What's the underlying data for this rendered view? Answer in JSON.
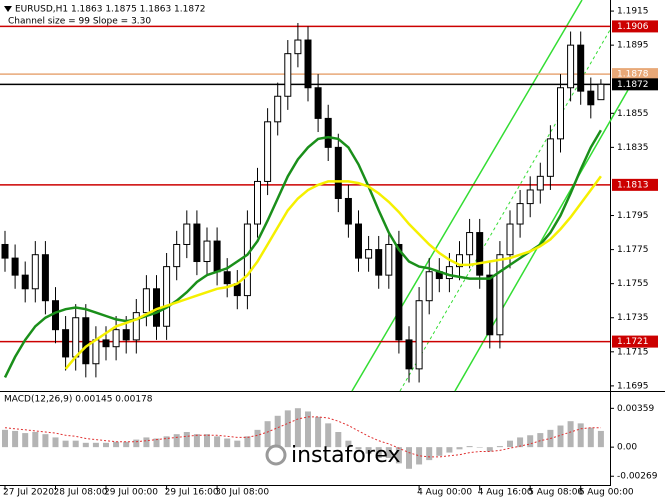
{
  "chart_data": [
    {
      "type": "candlestick",
      "title": "EURUSD,H1 1.1863 1.1875 1.1863 1.1872",
      "subtitle": "Channel size = 99 Slope = 3.30",
      "categories": [
        "27 Jul 2020",
        null,
        null,
        null,
        null,
        "28 Jul 08:00",
        null,
        null,
        null,
        null,
        "29 Jul 00:00",
        null,
        null,
        null,
        null,
        null,
        "29 Jul 16:00",
        null,
        null,
        null,
        null,
        "30 Jul 08:00",
        null,
        null,
        null,
        null,
        null,
        null,
        null,
        null,
        null,
        null,
        null,
        null,
        null,
        null,
        null,
        null,
        null,
        null,
        null,
        "4 Aug 00:00",
        null,
        null,
        null,
        null,
        null,
        "4 Aug 16:00",
        null,
        null,
        null,
        null,
        "5 Aug 08:00",
        null,
        null,
        null,
        null,
        "6 Aug 00:00",
        null,
        null
      ],
      "open": [
        1.1778,
        1.177,
        1.176,
        1.1752,
        1.1772,
        1.1745,
        1.1728,
        1.1712,
        1.1735,
        1.1708,
        1.1722,
        1.1718,
        1.1728,
        1.1722,
        1.1738,
        1.1752,
        1.173,
        1.1765,
        1.1778,
        1.179,
        1.1768,
        1.178,
        1.1762,
        1.1755,
        1.1748,
        1.179,
        1.1815,
        1.185,
        1.1865,
        1.189,
        1.1898,
        1.187,
        1.1852,
        1.1835,
        1.1805,
        1.179,
        1.177,
        1.1775,
        1.176,
        1.1778,
        1.1722,
        1.1705,
        1.1745,
        1.1762,
        1.1758,
        1.1765,
        1.1772,
        1.1785,
        1.176,
        1.1725,
        1.1772,
        1.179,
        1.1802,
        1.181,
        1.1818,
        1.184,
        1.187,
        1.1895,
        1.1868,
        1.1863
      ],
      "high": [
        1.1786,
        1.1778,
        1.1768,
        1.178,
        1.178,
        1.1753,
        1.1736,
        1.1743,
        1.1743,
        1.173,
        1.173,
        1.1736,
        1.1736,
        1.1746,
        1.176,
        1.176,
        1.1773,
        1.1786,
        1.1798,
        1.1798,
        1.1788,
        1.1788,
        1.177,
        1.1763,
        1.1798,
        1.1823,
        1.1858,
        1.1873,
        1.1898,
        1.1908,
        1.1906,
        1.1878,
        1.186,
        1.1843,
        1.1813,
        1.1798,
        1.1783,
        1.1783,
        1.1786,
        1.1786,
        1.173,
        1.1753,
        1.177,
        1.177,
        1.1773,
        1.178,
        1.1793,
        1.1793,
        1.1768,
        1.178,
        1.1798,
        1.181,
        1.1818,
        1.1826,
        1.1848,
        1.1878,
        1.1903,
        1.1903,
        1.1876,
        1.1875
      ],
      "low": [
        1.1762,
        1.1752,
        1.1744,
        1.1744,
        1.1737,
        1.172,
        1.1704,
        1.1704,
        1.17,
        1.17,
        1.171,
        1.171,
        1.1714,
        1.1714,
        1.173,
        1.1722,
        1.1722,
        1.1757,
        1.177,
        1.176,
        1.176,
        1.1754,
        1.1747,
        1.174,
        1.174,
        1.1782,
        1.1807,
        1.1842,
        1.1857,
        1.1882,
        1.1862,
        1.1844,
        1.1827,
        1.1797,
        1.1782,
        1.1762,
        1.1762,
        1.1752,
        1.1752,
        1.1714,
        1.1697,
        1.1697,
        1.1737,
        1.175,
        1.175,
        1.1757,
        1.1764,
        1.1752,
        1.1717,
        1.1717,
        1.1764,
        1.1782,
        1.1794,
        1.1802,
        1.181,
        1.1832,
        1.1862,
        1.186,
        1.1852,
        1.1863
      ],
      "close": [
        1.177,
        1.176,
        1.1752,
        1.1772,
        1.1745,
        1.1728,
        1.1712,
        1.1735,
        1.1708,
        1.1722,
        1.1718,
        1.1728,
        1.1722,
        1.1738,
        1.1752,
        1.173,
        1.1765,
        1.1778,
        1.179,
        1.1768,
        1.178,
        1.1762,
        1.1755,
        1.1748,
        1.179,
        1.1815,
        1.185,
        1.1865,
        1.189,
        1.1898,
        1.187,
        1.1852,
        1.1835,
        1.1805,
        1.179,
        1.177,
        1.1775,
        1.176,
        1.1778,
        1.1722,
        1.1705,
        1.1745,
        1.1762,
        1.1758,
        1.1765,
        1.1772,
        1.1785,
        1.176,
        1.1725,
        1.1772,
        1.179,
        1.1802,
        1.181,
        1.1818,
        1.184,
        1.187,
        1.1895,
        1.1868,
        1.186,
        1.1872
      ],
      "lines": [
        {
          "color": "#1a8f1a",
          "values": [
            1.17,
            1.1712,
            1.1722,
            1.173,
            1.1735,
            1.1738,
            1.174,
            1.1741,
            1.174,
            1.1738,
            1.1736,
            1.1734,
            1.1733,
            1.1734,
            1.1736,
            1.1738,
            1.1741,
            1.1745,
            1.175,
            1.1756,
            1.176,
            1.1762,
            1.1764,
            1.1768,
            1.1772,
            1.178,
            1.1792,
            1.1805,
            1.1818,
            1.1828,
            1.1835,
            1.184,
            1.1841,
            1.184,
            1.1835,
            1.1825,
            1.1812,
            1.1798,
            1.1785,
            1.1775,
            1.1768,
            1.1765,
            1.1764,
            1.1762,
            1.176,
            1.1759,
            1.1758,
            1.1758,
            1.1758,
            1.1762,
            1.1766,
            1.177,
            1.1774,
            1.1778,
            1.1785,
            1.1795,
            1.1808,
            1.1822,
            1.1835,
            1.1845
          ]
        },
        {
          "color": "#f5f000",
          "values": [
            null,
            null,
            null,
            null,
            null,
            null,
            1.1705,
            1.1712,
            1.1718,
            1.1722,
            1.1726,
            1.173,
            1.1732,
            1.1734,
            1.1737,
            1.174,
            1.1742,
            1.1744,
            1.1746,
            1.1748,
            1.175,
            1.1752,
            1.1753,
            1.1755,
            1.176,
            1.1768,
            1.1778,
            1.1788,
            1.1798,
            1.1805,
            1.181,
            1.1813,
            1.1815,
            1.1815,
            1.1815,
            1.1814,
            1.1812,
            1.1808,
            1.1803,
            1.1797,
            1.179,
            1.1784,
            1.1778,
            1.1773,
            1.1769,
            1.1766,
            1.1766,
            1.1767,
            1.1768,
            1.1769,
            1.177,
            1.1772,
            1.1774,
            1.1777,
            1.1781,
            1.1787,
            1.1794,
            1.1802,
            1.181,
            1.1818
          ]
        }
      ],
      "levels": [
        {
          "value": 1.1906,
          "color": "#cc0000"
        },
        {
          "value": 1.1878,
          "color": "#e8a878"
        },
        {
          "value": 1.1872,
          "color": "#000000"
        },
        {
          "value": 1.1813,
          "color": "#cc0000"
        },
        {
          "value": 1.1721,
          "color": "#cc0000"
        }
      ],
      "ylim": [
        1.1692,
        1.19215
      ],
      "yticks": [
        1.1915,
        1.1895,
        1.1855,
        1.1835,
        1.1795,
        1.1775,
        1.1755,
        1.1735,
        1.1715,
        1.1695
      ]
    },
    {
      "type": "macd",
      "title": "MACD(12,26,9) 0.00145 0.00178",
      "color": "#b4b4b4",
      "signal_color": "#e03030",
      "histogram": [
        0.0016,
        0.0015,
        0.0013,
        0.0014,
        0.0012,
        0.0009,
        0.0006,
        0.0006,
        0.0004,
        0.0004,
        0.0004,
        0.0005,
        0.0005,
        0.0007,
        0.0009,
        0.0008,
        0.001,
        0.0012,
        0.0014,
        0.0012,
        0.0012,
        0.001,
        0.0008,
        0.0006,
        0.001,
        0.0016,
        0.0024,
        0.0029,
        0.0034,
        0.0036,
        0.0033,
        0.0028,
        0.0022,
        0.0014,
        0.0006,
        -0.0002,
        -0.0006,
        -0.001,
        -0.001,
        -0.0015,
        -0.002,
        -0.0016,
        -0.0012,
        -0.0008,
        -0.0005,
        -0.0002,
        0.0001,
        0.0,
        -0.0004,
        0.0001,
        0.0006,
        0.0009,
        0.0011,
        0.0013,
        0.0016,
        0.002,
        0.0024,
        0.0022,
        0.0018,
        0.0015
      ],
      "signal": [
        0.0018,
        0.0017,
        0.0016,
        0.0015,
        0.0014,
        0.0013,
        0.0011,
        0.001,
        0.0008,
        0.0007,
        0.0006,
        0.0005,
        0.0005,
        0.0005,
        0.0006,
        0.0007,
        0.0008,
        0.0009,
        0.001,
        0.0011,
        0.0011,
        0.0011,
        0.001,
        0.0009,
        0.0009,
        0.0011,
        0.0014,
        0.0018,
        0.0022,
        0.0026,
        0.0028,
        0.0028,
        0.0027,
        0.0024,
        0.002,
        0.0015,
        0.001,
        0.0006,
        0.0003,
        -0.0001,
        -0.0005,
        -0.0008,
        -0.0009,
        -0.0009,
        -0.0008,
        -0.0007,
        -0.0005,
        -0.0004,
        -0.0004,
        -0.0003,
        -0.0001,
        0.0001,
        0.0003,
        0.0006,
        0.0008,
        0.0011,
        0.0014,
        0.0017,
        0.0018,
        0.0018
      ],
      "ylim": [
        -0.0035,
        0.0051
      ],
      "yticks": [
        0.00359,
        {
          "value": 0,
          "label": "0.00"
        },
        -0.00269
      ]
    }
  ],
  "watermark": "instaforex"
}
